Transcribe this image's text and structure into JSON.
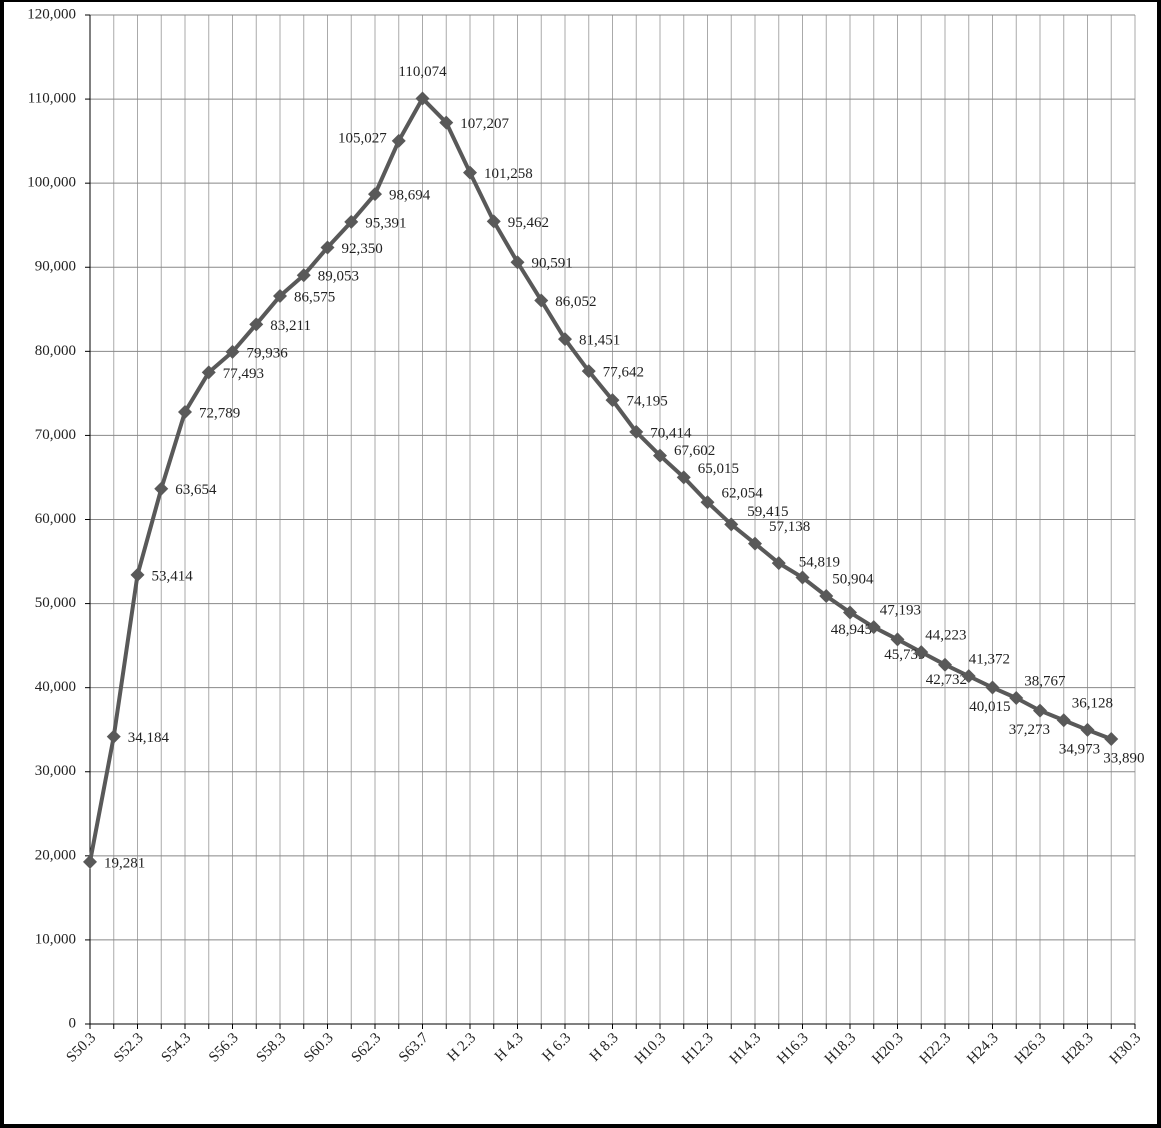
{
  "chart_data": {
    "type": "line",
    "categories": [
      "S50.3",
      null,
      "S52.3",
      null,
      "S54.3",
      null,
      "S56.3",
      null,
      "S58.3",
      null,
      "S60.3",
      null,
      "S62.3",
      null,
      "S63.7",
      null,
      "H 2.3",
      null,
      "H 4.3",
      null,
      "H 6.3",
      null,
      "H 8.3",
      null,
      "H10.3",
      null,
      "H12.3",
      null,
      "H14.3",
      null,
      "H16.3",
      null,
      "H18.3",
      null,
      "H20.3",
      null,
      "H22.3",
      null,
      "H24.3",
      null,
      "H26.3",
      null,
      "H28.3",
      null,
      "H30.3"
    ],
    "series": [
      {
        "color": "#595959",
        "values": [
          19281,
          34184,
          53414,
          63654,
          72789,
          77493,
          79936,
          83211,
          86575,
          89053,
          92350,
          95391,
          98694,
          105027,
          110074,
          107207,
          101258,
          95462,
          90591,
          86052,
          81451,
          77642,
          74195,
          70414,
          67602,
          65015,
          62054,
          59415,
          57138,
          54819,
          53100,
          50904,
          48945,
          47193,
          45739,
          44223,
          42732,
          41372,
          40015,
          38767,
          37273,
          36128,
          34973,
          33890,
          null
        ],
        "value_labels": [
          "19,281",
          "34,184",
          "53,414",
          "63,654",
          "72,789",
          "77,493",
          "79,936",
          "83,211",
          "86,575",
          "89,053",
          "92,350",
          "95,391",
          "98,694",
          "105,027",
          "110,074",
          "107,207",
          "101,258",
          "95,462",
          "90,591",
          "86,052",
          "81,451",
          "77,642",
          "74,195",
          "70,414",
          "67,602",
          "65,015",
          "62,054",
          "59,415",
          "57,138",
          "54,819",
          null,
          "50,904",
          "48,945",
          "47,193",
          "45,739",
          "44,223",
          "42,732",
          "41,372",
          "40,015",
          "38,767",
          "37,273",
          "36,128",
          "34,973",
          "33,890",
          null
        ]
      }
    ],
    "ylim": [
      0,
      120000
    ],
    "yticks": [
      0,
      {
        "value": 10000,
        "label": "10,000"
      },
      {
        "value": 20000,
        "label": "20,000"
      },
      {
        "value": 30000,
        "label": "30,000"
      },
      {
        "value": 40000,
        "label": "40,000"
      },
      {
        "value": 50000,
        "label": "50,000"
      },
      {
        "value": 60000,
        "label": "60,000"
      },
      {
        "value": 70000,
        "label": "70,000"
      },
      {
        "value": 80000,
        "label": "80,000"
      },
      {
        "value": 90000,
        "label": "90,000"
      },
      {
        "value": 100000,
        "label": "100,000"
      },
      {
        "value": 110000,
        "label": "110,000"
      },
      {
        "value": 120000,
        "label": "120,000"
      }
    ],
    "grid": true
  }
}
